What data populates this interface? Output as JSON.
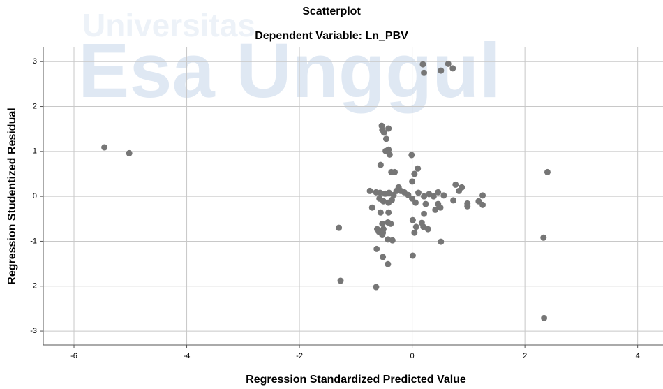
{
  "chart_data": {
    "type": "scatter",
    "title": "Scatterplot",
    "subtitle": "Dependent Variable: Ln_PBV",
    "x_label": "Regression Standardized Predicted Value",
    "y_label": "Regression Studentized Residual",
    "watermark": [
      "Universitas",
      "Esa Unggul"
    ],
    "color": "#767676",
    "grid": true,
    "xlim": [
      -6.545,
      4.45
    ],
    "ylim": [
      -3.31,
      3.33
    ],
    "xticks": [
      -6,
      -4,
      -2,
      0,
      2,
      4
    ],
    "yticks": [
      -3,
      -2,
      -1,
      0,
      1,
      2,
      3
    ],
    "x": [
      -5.46,
      -5.02,
      0.19,
      0.21,
      0.64,
      0.72,
      0.51,
      -0.54,
      -0.53,
      -0.42,
      -0.5,
      -0.46,
      -0.47,
      -0.42,
      -0.4,
      -0.56,
      -0.01,
      -0.37,
      -0.31,
      0.1,
      0.04,
      0,
      2.4,
      0.77,
      0.88,
      0.83,
      1.25,
      1.18,
      1.25,
      0.98,
      0.98,
      0.73,
      0.56,
      0.46,
      0.38,
      0.3,
      0.21,
      0.11,
      0,
      -0.07,
      -0.14,
      -0.2,
      -0.24,
      -0.28,
      -0.33,
      -0.41,
      -0.48,
      -0.57,
      -0.64,
      -0.75,
      -0.58,
      -0.51,
      -0.42,
      -0.36,
      -0.71,
      -0.56,
      -0.42,
      0.06,
      0.21,
      0.41,
      0.5,
      0.46,
      0.24,
      -0.53,
      -0.43,
      -0.38,
      0.01,
      0.07,
      0.04,
      0.2,
      0.28,
      0.17,
      -0.51,
      -0.52,
      -0.62,
      -0.59,
      -0.53,
      -0.43,
      -0.35,
      -1.3,
      0.51,
      2.33,
      -0.63,
      0.01,
      -0.52,
      -0.43,
      -1.27,
      -0.64,
      2.34
    ],
    "values": [
      1.09,
      0.96,
      2.94,
      2.75,
      2.95,
      2.85,
      2.8,
      1.57,
      1.48,
      1.51,
      1.42,
      1.28,
      1.01,
      1.04,
      0.93,
      0.7,
      0.92,
      0.54,
      0.54,
      0.62,
      0.5,
      0.33,
      0.54,
      0.26,
      0.2,
      0.12,
      0.02,
      -0.11,
      -0.19,
      -0.16,
      -0.22,
      -0.09,
      0.02,
      0.09,
      0,
      0.05,
      0,
      0.08,
      -0.05,
      0.03,
      0.09,
      0.12,
      0.2,
      0.12,
      0.03,
      0.08,
      0.06,
      0.08,
      0.09,
      0.12,
      -0.05,
      -0.11,
      -0.14,
      -0.08,
      -0.25,
      -0.36,
      -0.36,
      -0.14,
      -0.39,
      -0.3,
      -0.25,
      -0.17,
      -0.17,
      -0.61,
      -0.58,
      -0.61,
      -0.53,
      -0.68,
      -0.81,
      -0.68,
      -0.73,
      -0.59,
      -0.73,
      -0.81,
      -0.73,
      -0.79,
      -0.86,
      -0.96,
      -0.98,
      -0.7,
      -1.01,
      -0.92,
      -1.17,
      -1.32,
      -1.35,
      -1.51,
      -1.88,
      -2.02,
      -2.71
    ]
  }
}
